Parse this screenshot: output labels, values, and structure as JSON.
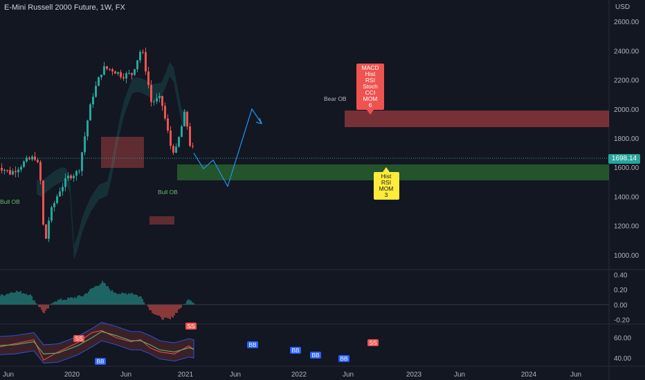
{
  "header": {
    "title": "E-Mini Russell 2000 Future, 1W, FX",
    "currency": "USD"
  },
  "last_price": "1698.14",
  "colors": {
    "up": "#26a69a",
    "down": "#ef5350",
    "bull_zone": "#2e7d32",
    "bear_zone": "#b71c1c",
    "projection": "#2196f3",
    "signal_red": "#ef5350",
    "signal_yellow": "#ffeb3b"
  },
  "signals": {
    "sell": [
      "MACD",
      "Hist",
      "RSI",
      "Stoch",
      "CCI",
      "MOM",
      "6"
    ],
    "buy": [
      "Hist",
      "RSI",
      "MOM",
      "3"
    ]
  },
  "labels": {
    "bear_ob": "Bear OB",
    "bull_ob_1": "Bull OB",
    "bull_ob_2": "Bull OB",
    "bb": "BB",
    "ss": "SS"
  },
  "chart_data": [
    {
      "type": "line",
      "title": "E-Mini Russell 2000 Future, 1W, FX",
      "ylabel": "USD",
      "x_labels": [
        "Jun",
        "2020",
        "Jun",
        "2021",
        "Jun",
        "2022",
        "Jun",
        "2023",
        "Jun",
        "2024",
        "Jun"
      ],
      "y_ticks": [
        "2600.00",
        "2400.00",
        "2200.00",
        "2000.00",
        "1800.00",
        "1600.00",
        "1400.00",
        "1200.00",
        "1000.00"
      ],
      "ylim": [
        900,
        2700
      ],
      "series": [
        {
          "name": "",
          "x": [
            "2019-05",
            "2019-08",
            "2019-11",
            "2020-01",
            "2020-02",
            "2020-03",
            "2020-04",
            "2020-06",
            "2020-08",
            "2020-10",
            "2020-11",
            "2020-12",
            "2021-01",
            "2021-03",
            "2021-05",
            "2021-07",
            "2021-09",
            "2021-11",
            "2021-12",
            "2022-01",
            "2022-03",
            "2022-05",
            "2022-06",
            "2022-08",
            "2022-09",
            "2022-10"
          ],
          "values": [
            1620,
            1560,
            1640,
            1670,
            1580,
            1050,
            1270,
            1440,
            1540,
            1570,
            1760,
            1950,
            2100,
            2280,
            2270,
            2230,
            2240,
            2420,
            2250,
            2050,
            2070,
            1750,
            1700,
            1980,
            1760,
            1698
          ]
        }
      ],
      "projection": {
        "x": [
          "2022-10",
          "2022-12",
          "2023-02",
          "2023-05",
          "2023-10",
          "2023-12"
        ],
        "values": [
          1698,
          1590,
          1650,
          1470,
          2000,
          1900
        ]
      },
      "zones": [
        {
          "label": "Bull OB",
          "low": 1525,
          "high": 1650
        },
        {
          "label": "Bear OB",
          "low": 1930,
          "high": 2060
        }
      ]
    },
    {
      "type": "area",
      "y_ticks": [
        "0.40",
        "0.20",
        "0.00",
        "-0.20"
      ],
      "ylim": [
        -0.25,
        0.45
      ],
      "x": [
        "2019-05",
        "2019-09",
        "2019-12",
        "2020-03",
        "2020-05",
        "2020-08",
        "2020-11",
        "2021-01",
        "2021-03",
        "2021-05",
        "2021-07",
        "2021-09",
        "2021-11",
        "2022-01",
        "2022-03",
        "2022-05",
        "2022-07",
        "2022-09",
        "2022-10"
      ],
      "values": [
        0.1,
        0.18,
        0.14,
        -0.12,
        0.05,
        0.08,
        0.12,
        0.22,
        0.3,
        0.18,
        0.14,
        0.16,
        0.1,
        -0.08,
        -0.18,
        -0.2,
        -0.05,
        0.08,
        0.02
      ]
    },
    {
      "type": "line",
      "y_ticks": [
        "60.00",
        "40.00"
      ],
      "ylim": [
        32,
        72
      ],
      "x": [
        "2019-05",
        "2019-09",
        "2020-01",
        "2020-03",
        "2020-06",
        "2020-10",
        "2021-01",
        "2021-03",
        "2021-06",
        "2021-09",
        "2021-11",
        "2022-01",
        "2022-03",
        "2022-06",
        "2022-09",
        "2022-10"
      ],
      "series": [
        {
          "name": "",
          "values": [
            50,
            54,
            58,
            38,
            46,
            55,
            65,
            67,
            60,
            56,
            58,
            50,
            46,
            44,
            52,
            48
          ]
        },
        {
          "name": "",
          "values": [
            52,
            53,
            56,
            44,
            45,
            52,
            60,
            66,
            62,
            57,
            57,
            53,
            48,
            46,
            50,
            49
          ]
        }
      ]
    }
  ]
}
